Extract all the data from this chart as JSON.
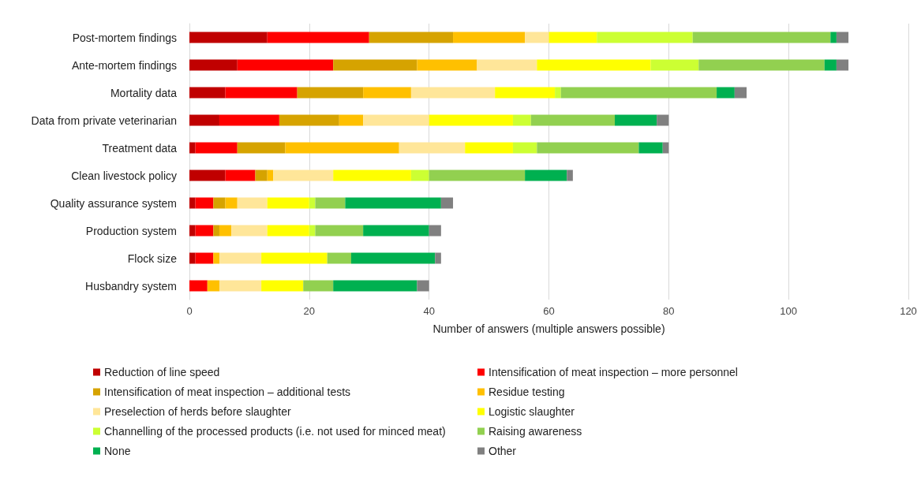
{
  "chart_data": {
    "type": "bar",
    "orientation": "horizontal",
    "stacked": true,
    "xlabel": "Number of answers (multiple answers possible)",
    "categories": [
      "Post-mortem findings",
      "Ante-mortem findings",
      "Mortality data",
      "Data from private veterinarian",
      "Treatment data",
      "Clean livestock policy",
      "Quality assurance system",
      "Production system",
      "Flock size",
      "Husbandry system"
    ],
    "series": [
      {
        "name": "Reduction of line speed",
        "color": "#c00000",
        "values": [
          13,
          8,
          6,
          5,
          1,
          6,
          1,
          1,
          1,
          0
        ]
      },
      {
        "name": "Intensification of meat inspection – more personnel",
        "color": "#ff0000",
        "values": [
          17,
          16,
          12,
          10,
          7,
          5,
          3,
          3,
          3,
          3
        ]
      },
      {
        "name": "Intensification of meat inspection – additional tests",
        "color": "#d6a300",
        "values": [
          14,
          14,
          11,
          10,
          8,
          2,
          2,
          1,
          0,
          0
        ]
      },
      {
        "name": "Residue testing",
        "color": "#ffc000",
        "values": [
          12,
          10,
          8,
          4,
          19,
          1,
          2,
          2,
          1,
          2
        ]
      },
      {
        "name": "Preselection of herds before slaughter",
        "color": "#ffe699",
        "values": [
          4,
          10,
          14,
          11,
          11,
          10,
          5,
          6,
          7,
          7
        ]
      },
      {
        "name": "Logistic slaughter",
        "color": "#ffff00",
        "values": [
          8,
          19,
          10,
          14,
          8,
          13,
          7,
          7,
          11,
          7
        ]
      },
      {
        "name": "Channelling of the processed products (i.e. not used for minced meat)",
        "color": "#ccff33",
        "values": [
          16,
          8,
          1,
          3,
          4,
          3,
          1,
          1,
          0,
          0
        ]
      },
      {
        "name": "Raising awareness",
        "color": "#92d050",
        "values": [
          23,
          21,
          26,
          14,
          17,
          16,
          5,
          8,
          4,
          5
        ]
      },
      {
        "name": "None",
        "color": "#00b050",
        "values": [
          1,
          2,
          3,
          7,
          4,
          7,
          16,
          11,
          14,
          14
        ]
      },
      {
        "name": "Other",
        "color": "#808080",
        "values": [
          2,
          2,
          2,
          2,
          1,
          1,
          2,
          2,
          1,
          2
        ]
      }
    ],
    "xlim": [
      0,
      120
    ],
    "xticks": [
      0,
      20,
      40,
      60,
      80,
      100,
      120
    ],
    "grid": "x",
    "legend": "bottom"
  }
}
